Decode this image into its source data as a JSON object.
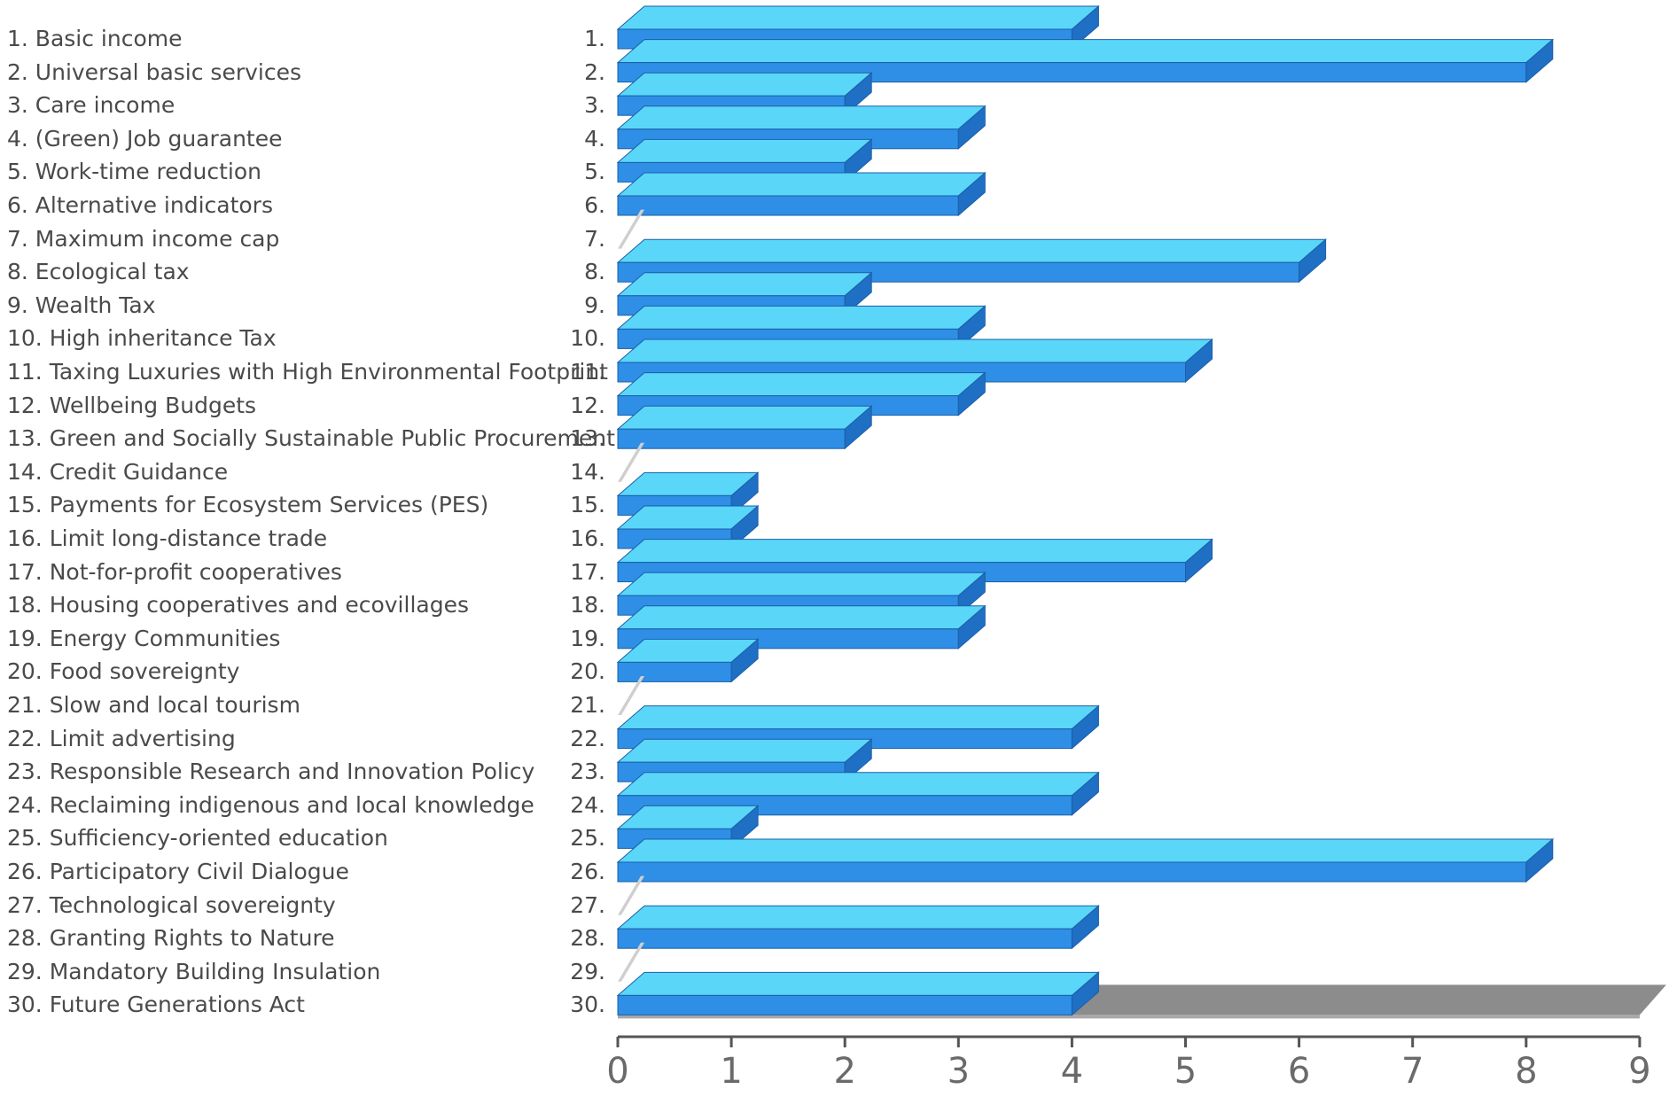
{
  "chart_data": {
    "type": "bar",
    "orientation": "horizontal",
    "style": "3d",
    "categories": [
      "1.",
      "2.",
      "3.",
      "4.",
      "5.",
      "6.",
      "7.",
      "8.",
      "9.",
      "10.",
      "11.",
      "12.",
      "13.",
      "14.",
      "15.",
      "16.",
      "17.",
      "18.",
      "19.",
      "20.",
      "21.",
      "22.",
      "23.",
      "24.",
      "25.",
      "26.",
      "27.",
      "28.",
      "29.",
      "30."
    ],
    "labels": [
      "1. Basic income",
      "2. Universal basic services",
      "3. Care income",
      "4. (Green) Job guarantee",
      "5. Work-time reduction",
      "6. Alternative indicators",
      "7. Maximum income cap",
      "8. Ecological tax",
      "9. Wealth Tax",
      "10. High inheritance Tax",
      "11. Taxing Luxuries with High Environmental Footprint",
      "12. Wellbeing Budgets",
      "13. Green and Socially Sustainable Public Procurement",
      "14. Credit Guidance",
      "15. Payments for Ecosystem Services (PES)",
      "16. Limit long-distance trade",
      "17. Not-for-profit cooperatives",
      "18. Housing cooperatives and ecovillages",
      "19. Energy Communities",
      "20. Food sovereignty",
      "21. Slow and local tourism",
      "22. Limit advertising",
      "23. Responsible Research and Innovation Policy",
      "24. Reclaiming indigenous and local knowledge",
      "25. Sufficiency-oriented education",
      "26. Participatory Civil Dialogue",
      "27. Technological sovereignty",
      "28. Granting Rights to Nature",
      "29. Mandatory Building Insulation",
      "30. Future Generations Act"
    ],
    "values": [
      4,
      8,
      2,
      3,
      2,
      3,
      0,
      6,
      2,
      3,
      5,
      3,
      2,
      0,
      1,
      1,
      5,
      3,
      3,
      1,
      0,
      4,
      2,
      4,
      1,
      8,
      0,
      4,
      0,
      4
    ],
    "xlim": [
      0,
      9
    ],
    "xticks": [
      "0",
      "1",
      "2",
      "3",
      "4",
      "5",
      "6",
      "7",
      "8",
      "9"
    ],
    "title": "",
    "xlabel": "",
    "ylabel": "",
    "legend_position": "left",
    "grid": false,
    "colors": {
      "bar_front": "#2f8fe6",
      "bar_top": "#5ad6f8",
      "bar_side": "#1f6fc4",
      "bar_edge": "#1a5fa8",
      "floor": "#8c8c8c",
      "axis": "#555555",
      "text": "#4a4a4a",
      "zero_stub": "#cfcfcf"
    }
  }
}
